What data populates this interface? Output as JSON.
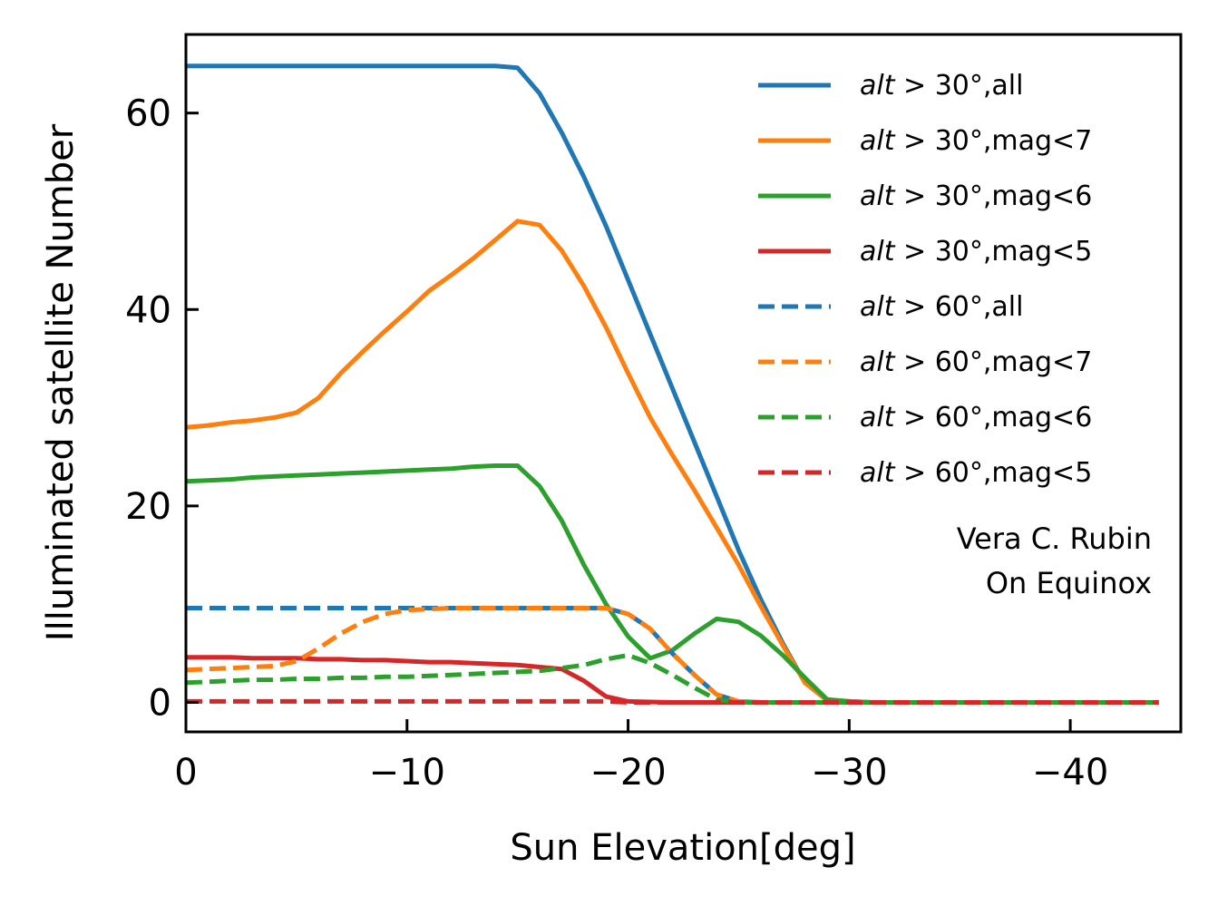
{
  "chart_data": {
    "type": "line",
    "title": "",
    "xlabel": "Sun Elevation[deg]",
    "ylabel": "Illuminated satellite Number",
    "xlim": [
      0,
      -45
    ],
    "ylim": [
      -3,
      68
    ],
    "xticks": [
      0,
      -10,
      -20,
      -30,
      -40
    ],
    "xtick_labels": [
      "0",
      "−10",
      "−20",
      "−30",
      "−40"
    ],
    "yticks": [
      0,
      20,
      40,
      60
    ],
    "ytick_labels": [
      "0",
      "20",
      "40",
      "60"
    ],
    "grid": false,
    "legend_position": "top-right",
    "annotation": [
      "Vera C. Rubin",
      "On Equinox"
    ],
    "x": [
      0,
      -1,
      -2,
      -3,
      -4,
      -5,
      -6,
      -7,
      -8,
      -9,
      -10,
      -11,
      -12,
      -13,
      -14,
      -15,
      -16,
      -17,
      -18,
      -19,
      -20,
      -21,
      -22,
      -23,
      -24,
      -25,
      -26,
      -27,
      -28,
      -29,
      -30,
      -31,
      -32,
      -33,
      -34,
      -35,
      -36,
      -37,
      -38,
      -39,
      -40,
      -41,
      -42,
      -43,
      -44
    ],
    "series": [
      {
        "name": "alt>30°,all",
        "legend_prefix": "alt",
        "legend_rest": " > 30°,all",
        "color": "#1f77b4",
        "style": "solid",
        "values": [
          64.8,
          64.8,
          64.8,
          64.8,
          64.8,
          64.8,
          64.8,
          64.8,
          64.8,
          64.8,
          64.8,
          64.8,
          64.8,
          64.8,
          64.8,
          64.6,
          62.0,
          58.0,
          53.5,
          48.5,
          43.0,
          37.5,
          32.0,
          26.5,
          21.0,
          15.5,
          10.5,
          6.0,
          2.0,
          0.2,
          0.1,
          0,
          0,
          0,
          0,
          0,
          0,
          0,
          0,
          0,
          0,
          0,
          0,
          0,
          0
        ]
      },
      {
        "name": "alt>30°,mag<7",
        "legend_prefix": "alt",
        "legend_rest": " > 30°,mag<7",
        "color": "#ff7f0e",
        "style": "solid",
        "values": [
          28.0,
          28.2,
          28.5,
          28.7,
          29.0,
          29.5,
          31.0,
          33.5,
          35.7,
          37.8,
          39.8,
          41.9,
          43.5,
          45.2,
          47.1,
          49.0,
          48.6,
          46.0,
          42.4,
          38.2,
          33.5,
          29.0,
          25.2,
          21.6,
          17.8,
          14.0,
          9.8,
          5.8,
          2.0,
          0.2,
          0.1,
          0,
          0,
          0,
          0,
          0,
          0,
          0,
          0,
          0,
          0,
          0,
          0,
          0,
          0
        ]
      },
      {
        "name": "alt>30°,mag<6",
        "legend_prefix": "alt",
        "legend_rest": " > 30°,mag<6",
        "color": "#2ca02c",
        "style": "solid",
        "values": [
          22.5,
          22.6,
          22.7,
          22.9,
          23.0,
          23.1,
          23.2,
          23.3,
          23.4,
          23.5,
          23.6,
          23.7,
          23.8,
          24.0,
          24.1,
          24.1,
          22.0,
          18.5,
          14.0,
          10.0,
          6.7,
          4.5,
          5.3,
          7.0,
          8.5,
          8.2,
          6.8,
          4.8,
          2.5,
          0.3,
          0.1,
          0,
          0,
          0,
          0,
          0,
          0,
          0,
          0,
          0,
          0,
          0,
          0,
          0,
          0
        ]
      },
      {
        "name": "alt>30°,mag<5",
        "legend_prefix": "alt",
        "legend_rest": " > 30°,mag<5",
        "color": "#d62728",
        "style": "solid",
        "values": [
          4.6,
          4.6,
          4.6,
          4.5,
          4.5,
          4.5,
          4.4,
          4.4,
          4.3,
          4.3,
          4.2,
          4.1,
          4.1,
          4.0,
          3.9,
          3.8,
          3.6,
          3.4,
          2.2,
          0.6,
          0.1,
          0.05,
          0,
          0,
          0,
          0,
          0,
          0,
          0,
          0,
          0,
          0,
          0,
          0,
          0,
          0,
          0,
          0,
          0,
          0,
          0,
          0,
          0,
          0,
          0
        ]
      },
      {
        "name": "alt>60°,all",
        "legend_prefix": "alt",
        "legend_rest": " > 60°,all",
        "color": "#1f77b4",
        "style": "dashed",
        "values": [
          9.6,
          9.6,
          9.6,
          9.6,
          9.6,
          9.6,
          9.6,
          9.6,
          9.6,
          9.6,
          9.6,
          9.6,
          9.6,
          9.6,
          9.6,
          9.6,
          9.6,
          9.6,
          9.6,
          9.6,
          9.0,
          7.5,
          5.0,
          2.8,
          0.8,
          0.1,
          0,
          0,
          0,
          0,
          0,
          0,
          0,
          0,
          0,
          0,
          0,
          0,
          0,
          0,
          0,
          0,
          0,
          0,
          0
        ]
      },
      {
        "name": "alt>60°,mag<7",
        "legend_prefix": "alt",
        "legend_rest": " > 60°,mag<7",
        "color": "#ff7f0e",
        "style": "dashed",
        "values": [
          3.3,
          3.4,
          3.5,
          3.6,
          3.7,
          4.2,
          5.5,
          7.0,
          8.2,
          9.0,
          9.4,
          9.5,
          9.6,
          9.6,
          9.6,
          9.6,
          9.6,
          9.6,
          9.6,
          9.6,
          9.0,
          7.5,
          5.0,
          2.8,
          0.8,
          0.1,
          0,
          0,
          0,
          0,
          0,
          0,
          0,
          0,
          0,
          0,
          0,
          0,
          0,
          0,
          0,
          0,
          0,
          0,
          0
        ]
      },
      {
        "name": "alt>60°,mag<6",
        "legend_prefix": "alt",
        "legend_rest": " > 60°,mag<6",
        "color": "#2ca02c",
        "style": "dashed",
        "values": [
          2.0,
          2.1,
          2.2,
          2.3,
          2.3,
          2.4,
          2.4,
          2.5,
          2.5,
          2.6,
          2.6,
          2.7,
          2.8,
          2.9,
          3.0,
          3.1,
          3.2,
          3.5,
          3.8,
          4.4,
          4.8,
          4.0,
          2.8,
          1.5,
          0.3,
          0,
          0,
          0,
          0,
          0,
          0,
          0,
          0,
          0,
          0,
          0,
          0,
          0,
          0,
          0,
          0,
          0,
          0,
          0,
          0
        ]
      },
      {
        "name": "alt>60°,mag<5",
        "legend_prefix": "alt",
        "legend_rest": " > 60°,mag<5",
        "color": "#d62728",
        "style": "dashed",
        "values": [
          0.1,
          0.1,
          0.1,
          0.1,
          0.1,
          0.1,
          0.1,
          0.1,
          0.1,
          0.1,
          0.1,
          0.1,
          0.1,
          0.1,
          0.1,
          0.1,
          0.1,
          0.1,
          0.1,
          0.1,
          0,
          0,
          0,
          0,
          0,
          0,
          0,
          0,
          0,
          0,
          0,
          0,
          0,
          0,
          0,
          0,
          0,
          0,
          0,
          0,
          0,
          0,
          0,
          0,
          0
        ]
      }
    ]
  }
}
